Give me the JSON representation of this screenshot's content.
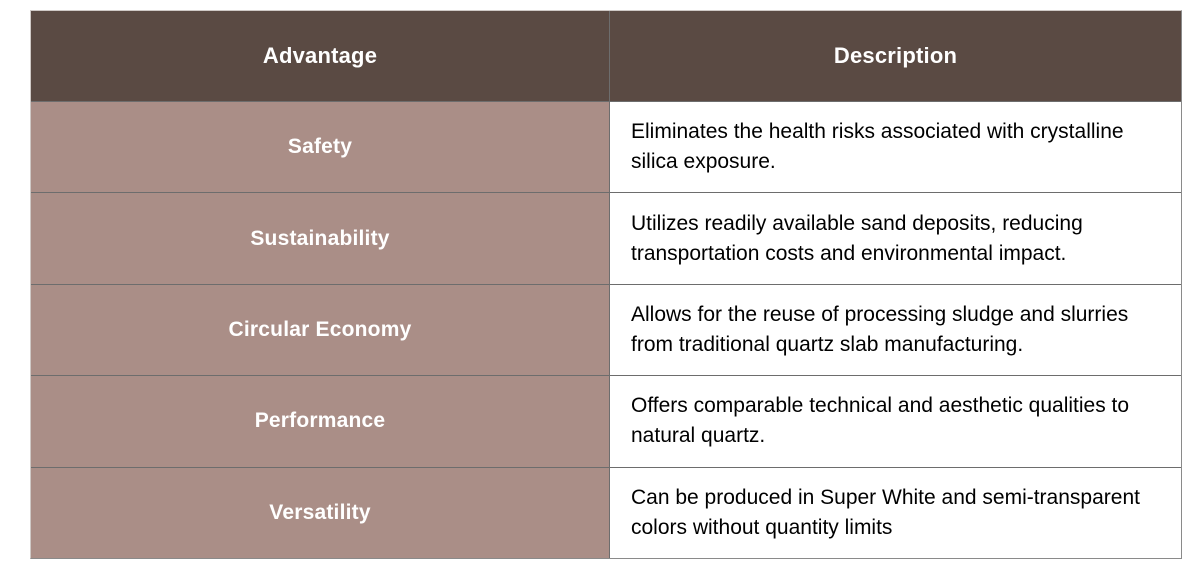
{
  "colors": {
    "header_bg": "#5A4A43",
    "advantage_bg": "#AA8E87",
    "header_text": "#ffffff",
    "advantage_text": "#ffffff",
    "description_text": "#000000",
    "grid_line": "#6d6d6d"
  },
  "table": {
    "columns": [
      {
        "label": "Advantage"
      },
      {
        "label": "Description"
      }
    ],
    "rows": [
      {
        "advantage": "Safety",
        "description": "Eliminates the health risks associated with crystalline silica exposure."
      },
      {
        "advantage": "Sustainability",
        "description": "Utilizes readily available sand deposits, reducing transportation costs and environmental impact."
      },
      {
        "advantage": "Circular Economy",
        "description": "Allows for the reuse of processing sludge and slurries from traditional quartz slab manufacturing."
      },
      {
        "advantage": "Performance",
        "description": "Offers comparable technical and aesthetic qualities to natural quartz."
      },
      {
        "advantage": "Versatility",
        "description": "Can be produced in Super White and semi-transparent colors without quantity limits"
      }
    ]
  }
}
